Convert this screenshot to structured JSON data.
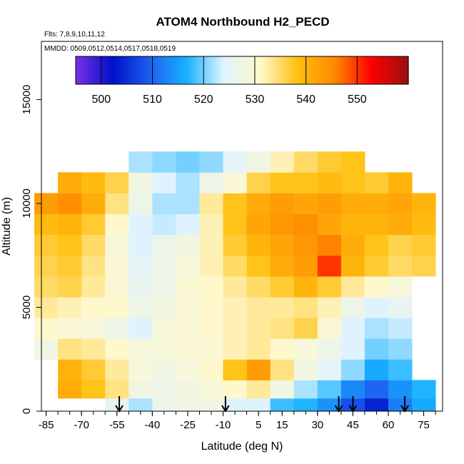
{
  "chart_data": {
    "type": "heatmap",
    "title": "ATOM4 Northbound H2_PECD",
    "flights_label": "Flts: 7,8,9,10,11,12",
    "mmdd_label": "MMDD: 0509,0512,0514,0517,0518,0519",
    "xlabel": "Latitude (deg N)",
    "ylabel": "Altitude (m)",
    "xlim": [
      -87,
      83
    ],
    "ylim": [
      0,
      17800
    ],
    "x_ticks": [
      -85,
      -70,
      -55,
      -40,
      -25,
      -10,
      5,
      15,
      30,
      45,
      60,
      75
    ],
    "y_ticks": [
      0,
      5000,
      10000,
      15000
    ],
    "colorbar": {
      "range": [
        495,
        560
      ],
      "ticks": [
        500,
        510,
        520,
        530,
        540,
        550
      ],
      "colors": [
        "#7b2fe6",
        "#0010c8",
        "#1f5ff0",
        "#16b2ff",
        "#dff3ff",
        "#fff8cc",
        "#ffc010",
        "#ff8a00",
        "#ff0000",
        "#9a1010"
      ]
    },
    "profile_arrows_lat": [
      -54,
      -9,
      39,
      45,
      67
    ],
    "latitudes": [
      -85,
      -75,
      -65,
      -55,
      -45,
      -35,
      -25,
      -15,
      -5,
      5,
      15,
      25,
      35,
      45,
      55,
      65,
      75
    ],
    "altitudes": [
      250,
      1000,
      2000,
      3000,
      4000,
      5000,
      6000,
      7000,
      8000,
      9000,
      10000,
      11000,
      12000
    ],
    "values": [
      [
        null,
        null,
        null,
        526,
        522,
        527,
        528,
        528,
        524,
        524,
        518,
        517,
        514,
        508,
        504,
        512,
        516
      ],
      [
        null,
        541,
        538,
        534,
        528,
        527,
        528,
        529,
        531,
        533,
        528,
        522,
        519,
        513,
        510,
        514,
        517
      ],
      [
        null,
        540,
        537,
        533,
        529,
        528,
        529,
        531,
        538,
        543,
        534,
        528,
        525,
        521,
        516,
        518,
        null
      ],
      [
        528,
        534,
        533,
        531,
        529,
        529,
        530,
        530,
        532,
        533,
        531,
        529,
        527,
        524,
        520,
        521,
        null
      ],
      [
        531,
        530,
        529,
        527,
        524,
        529,
        530,
        531,
        532,
        533,
        534,
        536,
        530,
        524,
        522,
        523,
        null
      ],
      [
        533,
        532,
        531,
        531,
        527,
        528,
        530,
        531,
        532,
        533,
        533,
        534,
        532,
        527,
        524,
        526,
        null
      ],
      [
        535,
        536,
        533,
        530,
        526,
        527,
        530,
        531,
        533,
        535,
        537,
        540,
        537,
        533,
        531,
        529,
        null
      ],
      [
        536,
        537,
        534,
        530,
        525,
        527,
        529,
        532,
        535,
        538,
        541,
        543,
        550,
        540,
        537,
        535,
        536
      ],
      [
        537,
        538,
        535,
        529,
        524,
        527,
        528,
        532,
        537,
        540,
        542,
        544,
        546,
        541,
        538,
        536,
        537
      ],
      [
        539,
        540,
        537,
        531,
        524,
        523,
        524,
        532,
        538,
        542,
        544,
        545,
        542,
        540,
        540,
        541,
        539
      ],
      [
        543,
        545,
        541,
        534,
        527,
        522,
        522,
        533,
        538,
        541,
        543,
        542,
        543,
        541,
        541,
        542,
        540
      ],
      [
        null,
        541,
        539,
        536,
        528,
        524,
        522,
        527,
        530,
        536,
        538,
        538,
        539,
        538,
        537,
        540,
        null
      ],
      [
        null,
        null,
        null,
        null,
        522,
        521,
        520,
        521,
        525,
        528,
        532,
        535,
        537,
        538,
        null,
        null,
        null
      ]
    ]
  }
}
